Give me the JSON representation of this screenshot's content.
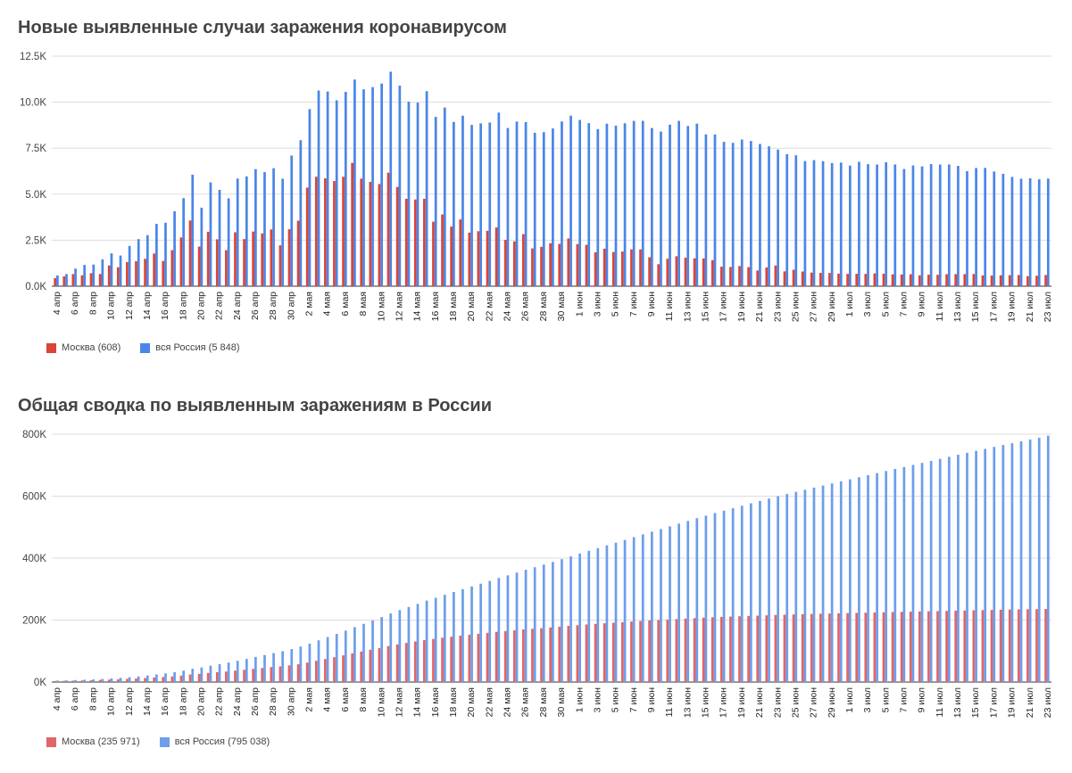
{
  "chart_data": [
    {
      "type": "bar",
      "title": "Новые выявленные случаи заражения коронавирусом",
      "xlabel": "",
      "ylabel": "",
      "ylim": [
        0,
        12500
      ],
      "y_ticks": [
        "0.0K",
        "2.5K",
        "5.0K",
        "7.5K",
        "10.0K",
        "12.5K"
      ],
      "y_tick_values": [
        0,
        2500,
        5000,
        7500,
        10000,
        12500
      ],
      "grid": true,
      "legend_position": "bottom-left",
      "categories": [
        "4 апр",
        "5 апр",
        "6 апр",
        "7 апр",
        "8 апр",
        "9 апр",
        "10 апр",
        "11 апр",
        "12 апр",
        "13 апр",
        "14 апр",
        "15 апр",
        "16 апр",
        "17 апр",
        "18 апр",
        "19 апр",
        "20 апр",
        "21 апр",
        "22 апр",
        "23 апр",
        "24 апр",
        "25 апр",
        "26 апр",
        "27 апр",
        "28 апр",
        "29 апр",
        "30 апр",
        "1 мая",
        "2 мая",
        "3 мая",
        "4 мая",
        "5 мая",
        "6 мая",
        "7 мая",
        "8 мая",
        "9 мая",
        "10 мая",
        "11 мая",
        "12 мая",
        "13 мая",
        "14 мая",
        "15 мая",
        "16 мая",
        "17 мая",
        "18 мая",
        "19 мая",
        "20 мая",
        "21 мая",
        "22 мая",
        "23 мая",
        "24 мая",
        "25 мая",
        "26 мая",
        "27 мая",
        "28 мая",
        "29 мая",
        "30 мая",
        "31 мая",
        "1 июн",
        "2 июн",
        "3 июн",
        "4 июн",
        "5 июн",
        "6 июн",
        "7 июн",
        "8 июн",
        "9 июн",
        "10 июн",
        "11 июн",
        "12 июн",
        "13 июн",
        "14 июн",
        "15 июн",
        "16 июн",
        "17 июн",
        "18 июн",
        "19 июн",
        "20 июн",
        "21 июн",
        "22 июн",
        "23 июн",
        "24 июн",
        "25 июн",
        "26 июн",
        "27 июн",
        "28 июн",
        "29 июн",
        "30 июн",
        "1 июл",
        "2 июл",
        "3 июл",
        "4 июл",
        "5 июл",
        "6 июл",
        "7 июл",
        "8 июл",
        "9 июл",
        "10 июл",
        "11 июл",
        "12 июл",
        "13 июл",
        "14 июл",
        "15 июл",
        "16 июл",
        "17 июл",
        "18 июл",
        "19 июл",
        "20 июл",
        "21 июл",
        "22 июл",
        "23 июл"
      ],
      "x_tick_labels": [
        "4 апр",
        "6 апр",
        "8 апр",
        "10 апр",
        "12 апр",
        "14 апр",
        "16 апр",
        "18 апр",
        "20 апр",
        "22 апр",
        "24 апр",
        "26 апр",
        "28 апр",
        "30 апр",
        "2 мая",
        "4 мая",
        "6 мая",
        "8 мая",
        "10 мая",
        "12 мая",
        "14 мая",
        "16 мая",
        "18 мая",
        "20 мая",
        "22 мая",
        "24 мая",
        "26 мая",
        "28 мая",
        "30 мая",
        "1 июн",
        "3 июн",
        "5 июн",
        "7 июн",
        "9 июн",
        "11 июн",
        "13 июн",
        "15 июн",
        "17 июн",
        "19 июн",
        "21 июн",
        "23 июн",
        "25 июн",
        "27 июн",
        "29 июн",
        "1 июл",
        "3 июл",
        "5 июл",
        "7 июл",
        "9 июл",
        "11 июл",
        "13 июл",
        "15 июл",
        "17 июл",
        "19 июл",
        "21 июл",
        "23 июл"
      ],
      "series": [
        {
          "name": "Москва (608)",
          "color": "#db4437",
          "values": [
            434,
            536,
            660,
            591,
            706,
            660,
            1124,
            1030,
            1306,
            1355,
            1489,
            1774,
            1370,
            1959,
            2649,
            3570,
            2151,
            2957,
            2548,
            1959,
            2930,
            2560,
            2971,
            2871,
            3083,
            2220,
            3093,
            3561,
            5358,
            5948,
            5858,
            5714,
            5948,
            6703,
            5846,
            5667,
            5551,
            6169,
            5392,
            4748,
            4712,
            4749,
            3505,
            3899,
            3238,
            3627,
            2913,
            2988,
            3008,
            3190,
            2516,
            2436,
            2830,
            2054,
            2140,
            2330,
            2297,
            2595,
            2286,
            2248,
            1842,
            2039,
            1855,
            1884,
            2001,
            2001,
            1572,
            1195,
            1493,
            1628,
            1547,
            1512,
            1508,
            1417,
            1058,
            1045,
            1095,
            1035,
            852,
            1019,
            1123,
            806,
            892,
            799,
            742,
            722,
            720,
            683,
            671,
            674,
            667,
            695,
            681,
            644,
            635,
            650,
            590,
            624,
            619,
            650,
            657,
            655,
            662,
            585,
            577,
            592,
            599,
            608,
            547,
            569,
            608
          ]
        },
        {
          "name": "вся Россия (5 848)",
          "color": "#4a86e8",
          "values": [
            582,
            658,
            954,
            1154,
            1175,
            1459,
            1786,
            1667,
            2186,
            2558,
            2774,
            3388,
            3448,
            4070,
            4785,
            6060,
            4268,
            5642,
            5236,
            4774,
            5849,
            5966,
            6361,
            6198,
            6411,
            5841,
            7099,
            7933,
            9623,
            10633,
            10581,
            10102,
            10559,
            11231,
            10699,
            10817,
            11012,
            11656,
            10899,
            10028,
            9974,
            10598,
            9200,
            9709,
            8926,
            9263,
            8764,
            8849,
            8894,
            9434,
            8599,
            8946,
            8915,
            8338,
            8371,
            8572,
            8952,
            9268,
            9035,
            8863,
            8536,
            8831,
            8726,
            8855,
            8984,
            8985,
            8595,
            8404,
            8779,
            8987,
            8706,
            8835,
            8248,
            8246,
            7843,
            7790,
            7972,
            7889,
            7728,
            7600,
            7425,
            7176,
            7113,
            6800,
            6852,
            6791,
            6693,
            6719,
            6556,
            6760,
            6632,
            6611,
            6736,
            6615,
            6368,
            6562,
            6509,
            6635,
            6611,
            6615,
            6537,
            6248,
            6422,
            6428,
            6234,
            6109,
            5940,
            5842,
            5862,
            5811,
            5848
          ]
        }
      ]
    },
    {
      "type": "bar",
      "title": "Общая сводка по выявленным заражениям в России",
      "xlabel": "",
      "ylabel": "",
      "ylim": [
        0,
        800000
      ],
      "y_ticks": [
        "0K",
        "200K",
        "400K",
        "600K",
        "800K"
      ],
      "y_tick_values": [
        0,
        200000,
        400000,
        600000,
        800000
      ],
      "grid": true,
      "legend_position": "bottom-left",
      "categories": [
        "4 апр",
        "5 апр",
        "6 апр",
        "7 апр",
        "8 апр",
        "9 апр",
        "10 апр",
        "11 апр",
        "12 апр",
        "13 апр",
        "14 апр",
        "15 апр",
        "16 апр",
        "17 апр",
        "18 апр",
        "19 апр",
        "20 апр",
        "21 апр",
        "22 апр",
        "23 апр",
        "24 апр",
        "25 апр",
        "26 апр",
        "27 апр",
        "28 апр",
        "29 апр",
        "30 апр",
        "1 мая",
        "2 мая",
        "3 мая",
        "4 мая",
        "5 мая",
        "6 мая",
        "7 мая",
        "8 мая",
        "9 мая",
        "10 мая",
        "11 мая",
        "12 мая",
        "13 мая",
        "14 мая",
        "15 мая",
        "16 мая",
        "17 мая",
        "18 мая",
        "19 мая",
        "20 мая",
        "21 мая",
        "22 мая",
        "23 мая",
        "24 мая",
        "25 мая",
        "26 мая",
        "27 мая",
        "28 мая",
        "29 мая",
        "30 мая",
        "31 мая",
        "1 июн",
        "2 июн",
        "3 июн",
        "4 июн",
        "5 июн",
        "6 июн",
        "7 июн",
        "8 июн",
        "9 июн",
        "10 июн",
        "11 июн",
        "12 июн",
        "13 июн",
        "14 июн",
        "15 июн",
        "16 июн",
        "17 июн",
        "18 июн",
        "19 июн",
        "20 июн",
        "21 июн",
        "22 июн",
        "23 июн",
        "24 июн",
        "25 июн",
        "26 июн",
        "27 июн",
        "28 июн",
        "29 июн",
        "30 июн",
        "1 июл",
        "2 июл",
        "3 июл",
        "4 июл",
        "5 июл",
        "6 июл",
        "7 июл",
        "8 июл",
        "9 июл",
        "10 июл",
        "11 июл",
        "12 июл",
        "13 июл",
        "14 июл",
        "15 июл",
        "16 июл",
        "17 июл",
        "18 июл",
        "19 июл",
        "20 июл",
        "21 июл",
        "22 июл",
        "23 июл"
      ],
      "x_tick_labels": [
        "4 апр",
        "6 апр",
        "8 апр",
        "10 апр",
        "12 апр",
        "14 апр",
        "16 апр",
        "18 апр",
        "20 апр",
        "22 апр",
        "24 апр",
        "26 апр",
        "28 апр",
        "30 апр",
        "2 мая",
        "4 мая",
        "6 мая",
        "8 мая",
        "10 мая",
        "12 мая",
        "14 мая",
        "16 мая",
        "18 мая",
        "20 мая",
        "22 мая",
        "24 мая",
        "26 мая",
        "28 мая",
        "30 мая",
        "1 июн",
        "3 июн",
        "5 июн",
        "7 июн",
        "9 июн",
        "11 июн",
        "13 июн",
        "15 июн",
        "17 июн",
        "19 июн",
        "21 июн",
        "23 июн",
        "25 июн",
        "27 июн",
        "29 июн",
        "1 июл",
        "3 июл",
        "5 июл",
        "7 июл",
        "9 июл",
        "11 июл",
        "13 июл",
        "15 июл",
        "17 июл",
        "19 июл",
        "21 июл",
        "23 июл"
      ],
      "series": [
        {
          "name": "Москва (235 971)",
          "color": "#e06666",
          "values": [
            3357,
            3893,
            4484,
            5181,
            5841,
            6698,
            7822,
            8852,
            10158,
            11513,
            13002,
            14776,
            16146,
            18105,
            20754,
            24324,
            26350,
            29433,
            31981,
            33940,
            36897,
            39509,
            42480,
            45351,
            48426,
            50646,
            53739,
            57300,
            62658,
            68606,
            74464,
            80178,
            86126,
            92829,
            98675,
            104342,
            109893,
            116062,
            121454,
            126202,
            130914,
            135663,
            139168,
            143067,
            146305,
            149932,
            152845,
            155833,
            158841,
            162031,
            164547,
            166983,
            169813,
            171867,
            174007,
            176337,
            178634,
            181229,
            183515,
            185763,
            187605,
            189644,
            191499,
            193383,
            195384,
            197385,
            198957,
            200152,
            201645,
            203273,
            204820,
            206332,
            207840,
            209257,
            210315,
            211360,
            212455,
            213490,
            214342,
            215361,
            216484,
            217290,
            218182,
            218981,
            219723,
            220445,
            221165,
            221848,
            222519,
            223193,
            223860,
            224555,
            225236,
            225880,
            226515,
            227165,
            227755,
            228379,
            228998,
            229648,
            230305,
            230960,
            231622,
            232207,
            232784,
            233376,
            233975,
            234583,
            235130,
            235399,
            235971
          ]
        },
        {
          "name": "вся Россия (795 038)",
          "color": "#6d9eeb",
          "values": [
            4731,
            5389,
            6343,
            7497,
            8672,
            10131,
            11917,
            13584,
            15770,
            18328,
            21102,
            24490,
            27938,
            32008,
            36793,
            42853,
            47121,
            52763,
            57999,
            62773,
            68622,
            74588,
            80949,
            87147,
            93558,
            99399,
            106498,
            114431,
            124054,
            134687,
            145268,
            155370,
            165929,
            177160,
            187859,
            198676,
            209688,
            221344,
            232243,
            242271,
            252245,
            262843,
            272043,
            281752,
            290678,
            299941,
            308705,
            317554,
            326448,
            335882,
            344481,
            353427,
            362342,
            370680,
            379051,
            387623,
            396575,
            405843,
            414878,
            423741,
            432277,
            441108,
            449834,
            458689,
            467673,
            476658,
            485253,
            493657,
            502436,
            511423,
            520129,
            528964,
            537210,
            545458,
            553301,
            561091,
            569063,
            576952,
            584680,
            592280,
            599705,
            606881,
            613994,
            620794,
            627646,
            634437,
            641130,
            647849,
            654405,
            661165,
            667797,
            674408,
            681144,
            687759,
            694127,
            700689,
            707198,
            713833,
            720444,
            727059,
            733596,
            739844,
            746266,
            752694,
            758928,
            765037,
            770977,
            776819,
            782681,
            788492,
            795038
          ]
        }
      ]
    }
  ]
}
